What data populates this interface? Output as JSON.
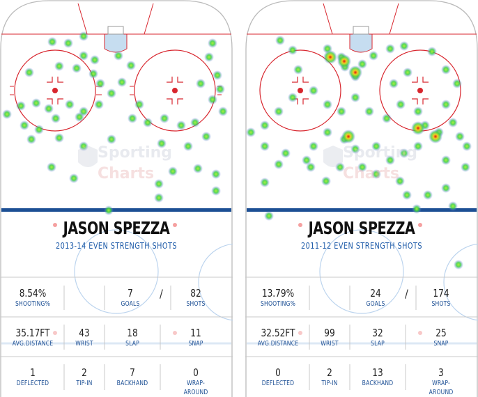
{
  "cards": [
    {
      "player_name": "JASON SPEZZA",
      "subtitle": "2013-14  EVEN STRENGTH  SHOTS",
      "shooting_pct": "8.54%",
      "shooting_label": "SHOOTING%",
      "goals": "7",
      "goals_label": "GOALS",
      "shots": "82",
      "shots_label": "SHOTS",
      "avg_distance": "35.17FT",
      "avg_distance_label": "AVG.DISTANCE",
      "wrist": "43",
      "wrist_label": "WRIST",
      "slap": "18",
      "slap_label": "SLAP",
      "snap": "11",
      "snap_label": "SNAP",
      "deflected": "1",
      "deflected_label": "DEFLECTED",
      "tipin": "2",
      "tipin_label": "TIP-IN",
      "backhand": "7",
      "backhand_label": "BACKHAND",
      "wraparound": "0",
      "wraparound_label": "WRAP-AROUND"
    },
    {
      "player_name": "JASON SPEZZA",
      "subtitle": "2011-12  EVEN STRENGTH  SHOTS",
      "shooting_pct": "13.79%",
      "shooting_label": "SHOOTING%",
      "goals": "24",
      "goals_label": "GOALS",
      "shots": "174",
      "shots_label": "SHOTS",
      "avg_distance": "32.52FT",
      "avg_distance_label": "AVG.DISTANCE",
      "wrist": "99",
      "wrist_label": "WRIST",
      "slap": "32",
      "slap_label": "SLAP",
      "snap": "25",
      "snap_label": "SNAP",
      "deflected": "0",
      "deflected_label": "DEFLECTED",
      "tipin": "2",
      "tipin_label": "TIP-IN",
      "backhand": "13",
      "backhand_label": "BACKHAND",
      "wraparound": "3",
      "wraparound_label": "WRAP-AROUND"
    }
  ],
  "slash": "/",
  "watermark": {
    "line1": "Sporting",
    "line2": "Charts"
  },
  "colors": {
    "heat_low": "#22c832",
    "heat_mid": "#e6ee1e",
    "heat_high": "#e01010",
    "blue_line": "#1c4f94",
    "red_line": "#d8262e"
  },
  "heat_intensity": {
    "left": "low",
    "right": "higher"
  }
}
